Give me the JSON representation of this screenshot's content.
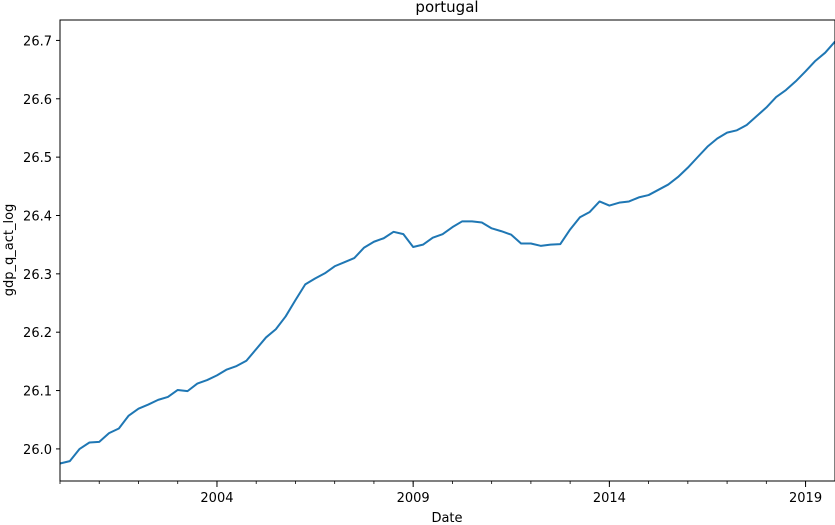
{
  "chart_data": {
    "type": "line",
    "title": "portugal",
    "xlabel": "Date",
    "ylabel": "gdp_q_act_log",
    "x_ticks": [
      "2004",
      "2009",
      "2014",
      "2019"
    ],
    "y_ticks": [
      "26.0",
      "26.1",
      "26.2",
      "26.3",
      "26.4",
      "26.5",
      "26.6",
      "26.7"
    ],
    "xlim": [
      "2000-01",
      "2019-10"
    ],
    "ylim": [
      25.945,
      26.735
    ],
    "grid": false,
    "legend": "none",
    "series": [
      {
        "color": "#1f77b4",
        "x": [
          "2000-01",
          "2000-04",
          "2000-07",
          "2000-10",
          "2001-01",
          "2001-04",
          "2001-07",
          "2001-10",
          "2002-01",
          "2002-04",
          "2002-07",
          "2002-10",
          "2003-01",
          "2003-04",
          "2003-07",
          "2003-10",
          "2004-01",
          "2004-04",
          "2004-07",
          "2004-10",
          "2005-01",
          "2005-04",
          "2005-07",
          "2005-10",
          "2006-01",
          "2006-04",
          "2006-07",
          "2006-10",
          "2007-01",
          "2007-04",
          "2007-07",
          "2007-10",
          "2008-01",
          "2008-04",
          "2008-07",
          "2008-10",
          "2009-01",
          "2009-04",
          "2009-07",
          "2009-10",
          "2010-01",
          "2010-04",
          "2010-07",
          "2010-10",
          "2011-01",
          "2011-04",
          "2011-07",
          "2011-10",
          "2012-01",
          "2012-04",
          "2012-07",
          "2012-10",
          "2013-01",
          "2013-04",
          "2013-07",
          "2013-10",
          "2014-01",
          "2014-04",
          "2014-07",
          "2014-10",
          "2015-01",
          "2015-04",
          "2015-07",
          "2015-10",
          "2016-01",
          "2016-04",
          "2016-07",
          "2016-10",
          "2017-01",
          "2017-04",
          "2017-07",
          "2017-10",
          "2018-01",
          "2018-04",
          "2018-07",
          "2018-10",
          "2019-01",
          "2019-04",
          "2019-07",
          "2019-10"
        ],
        "values": [
          25.975,
          25.979,
          26.0,
          26.011,
          26.012,
          26.027,
          26.035,
          26.057,
          26.069,
          26.076,
          26.084,
          26.089,
          26.101,
          26.099,
          26.112,
          26.118,
          26.126,
          26.136,
          26.142,
          26.151,
          26.171,
          26.191,
          26.205,
          26.227,
          26.255,
          26.282,
          26.292,
          26.301,
          26.313,
          26.32,
          26.327,
          26.345,
          26.355,
          26.361,
          26.372,
          26.368,
          26.346,
          26.35,
          26.362,
          26.368,
          26.38,
          26.39,
          26.39,
          26.388,
          26.378,
          26.373,
          26.367,
          26.352,
          26.352,
          26.348,
          26.35,
          26.351,
          26.376,
          26.397,
          26.406,
          26.424,
          26.417,
          26.422,
          26.424,
          26.431,
          26.435,
          26.444,
          26.453,
          26.466,
          26.482,
          26.5,
          26.518,
          26.532,
          26.542,
          26.546,
          26.555,
          26.57,
          26.585,
          26.603,
          26.615,
          26.63,
          26.647,
          26.665,
          26.679,
          26.698
        ]
      }
    ]
  }
}
